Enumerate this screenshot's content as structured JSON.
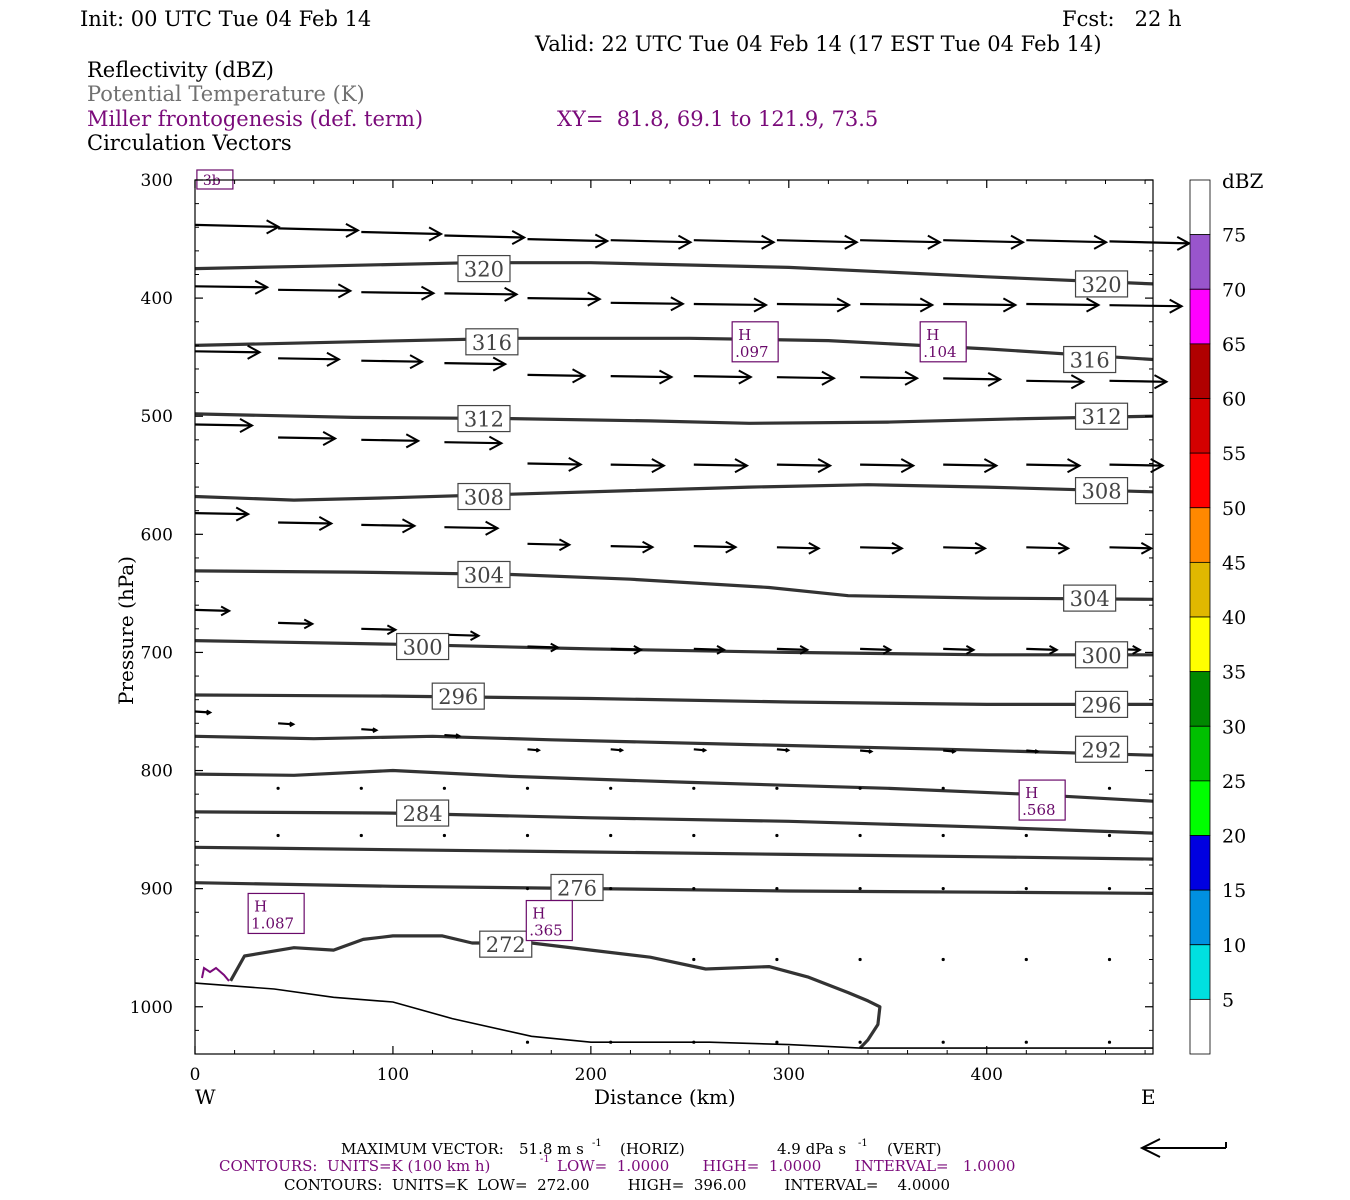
{
  "header": {
    "init": "Init: 00 UTC Tue 04 Feb 14",
    "fcst": "Fcst:   22 h",
    "valid": "Valid: 22 UTC Tue 04 Feb 14 (17 EST Tue 04 Feb 14)",
    "field1": "Reflectivity (dBZ)",
    "field2": "Potential Temperature (K)",
    "field3": "Miller frontogenesis (def. term)",
    "xy": "XY=  81.8, 69.1 to 121.9, 73.5",
    "field4": "Circulation Vectors"
  },
  "colors": {
    "field2": "#707070",
    "field3": "#7a0a7a",
    "contour": "#333333",
    "front_label": "#6a0a6a"
  },
  "chart_data": {
    "type": "cross-section",
    "xlabel": "Distance (km)",
    "ylabel": "Pressure (hPa)",
    "xlim": [
      0,
      484
    ],
    "ylim": [
      1040,
      300
    ],
    "x_ticks": [
      0,
      100,
      200,
      300,
      400
    ],
    "y_ticks": [
      300,
      400,
      500,
      600,
      700,
      800,
      900,
      1000
    ],
    "x_end_labels": {
      "left": "W",
      "right": "E"
    },
    "theta_contours": [
      {
        "label": "320",
        "points": [
          [
            0,
            375
          ],
          [
            60,
            373
          ],
          [
            140,
            370
          ],
          [
            200,
            370
          ],
          [
            300,
            374
          ],
          [
            400,
            382
          ],
          [
            484,
            388
          ]
        ]
      },
      {
        "label": "316",
        "points": [
          [
            0,
            440
          ],
          [
            80,
            437
          ],
          [
            160,
            434
          ],
          [
            250,
            434
          ],
          [
            320,
            436
          ],
          [
            400,
            443
          ],
          [
            484,
            452
          ]
        ]
      },
      {
        "label": "312",
        "points": [
          [
            0,
            498
          ],
          [
            80,
            501
          ],
          [
            160,
            502
          ],
          [
            230,
            504
          ],
          [
            280,
            506
          ],
          [
            350,
            505
          ],
          [
            420,
            502
          ],
          [
            484,
            500
          ]
        ]
      },
      {
        "label": "308",
        "points": [
          [
            0,
            568
          ],
          [
            50,
            571
          ],
          [
            100,
            569
          ],
          [
            160,
            566
          ],
          [
            220,
            563
          ],
          [
            280,
            560
          ],
          [
            340,
            558
          ],
          [
            400,
            560
          ],
          [
            484,
            564
          ]
        ]
      },
      {
        "label": "304",
        "points": [
          [
            0,
            631
          ],
          [
            80,
            632
          ],
          [
            160,
            634
          ],
          [
            220,
            638
          ],
          [
            290,
            645
          ],
          [
            330,
            652
          ],
          [
            400,
            654
          ],
          [
            484,
            655
          ]
        ]
      },
      {
        "label": "300",
        "points": [
          [
            0,
            690
          ],
          [
            100,
            693
          ],
          [
            200,
            697
          ],
          [
            300,
            700
          ],
          [
            400,
            702
          ],
          [
            484,
            702
          ]
        ]
      },
      {
        "label": "296",
        "points": [
          [
            0,
            736
          ],
          [
            100,
            737
          ],
          [
            200,
            739
          ],
          [
            300,
            742
          ],
          [
            400,
            744
          ],
          [
            484,
            744
          ]
        ]
      },
      {
        "label": "292",
        "points": [
          [
            0,
            771
          ],
          [
            60,
            773
          ],
          [
            120,
            771
          ],
          [
            180,
            774
          ],
          [
            280,
            778
          ],
          [
            380,
            782
          ],
          [
            484,
            787
          ]
        ]
      },
      {
        "label": "",
        "points": [
          [
            0,
            803
          ],
          [
            50,
            804
          ],
          [
            100,
            800
          ],
          [
            160,
            805
          ],
          [
            250,
            810
          ],
          [
            350,
            815
          ],
          [
            420,
            820
          ],
          [
            484,
            826
          ]
        ]
      },
      {
        "label": "284",
        "points": [
          [
            0,
            835
          ],
          [
            100,
            836
          ],
          [
            200,
            840
          ],
          [
            300,
            843
          ],
          [
            400,
            848
          ],
          [
            484,
            853
          ]
        ]
      },
      {
        "label": "",
        "points": [
          [
            0,
            865
          ],
          [
            100,
            867
          ],
          [
            200,
            869
          ],
          [
            300,
            871
          ],
          [
            400,
            873
          ],
          [
            484,
            875
          ]
        ]
      },
      {
        "label": "276",
        "points": [
          [
            0,
            895
          ],
          [
            100,
            898
          ],
          [
            200,
            900
          ],
          [
            300,
            902
          ],
          [
            400,
            903
          ],
          [
            484,
            904
          ]
        ]
      }
    ],
    "contour_272": {
      "label": "272",
      "points": [
        [
          18,
          978
        ],
        [
          25,
          957
        ],
        [
          50,
          950
        ],
        [
          70,
          952
        ],
        [
          85,
          943
        ],
        [
          100,
          940
        ],
        [
          125,
          940
        ],
        [
          140,
          946
        ],
        [
          170,
          946
        ],
        [
          200,
          952
        ],
        [
          230,
          958
        ],
        [
          258,
          968
        ],
        [
          290,
          966
        ],
        [
          310,
          975
        ],
        [
          330,
          988
        ],
        [
          340,
          995
        ],
        [
          346,
          1000
        ],
        [
          345,
          1015
        ],
        [
          340,
          1028
        ],
        [
          336,
          1035
        ]
      ],
      "bottom": [
        [
          0,
          980
        ],
        [
          40,
          985
        ],
        [
          70,
          992
        ],
        [
          100,
          996
        ],
        [
          130,
          1010
        ],
        [
          170,
          1025
        ],
        [
          200,
          1030
        ],
        [
          260,
          1030
        ],
        [
          300,
          1032
        ],
        [
          336,
          1035
        ],
        [
          484,
          1035
        ]
      ]
    },
    "contour_labels": [
      {
        "text": "320",
        "x": 146,
        "p": 375
      },
      {
        "text": "320",
        "x": 458,
        "p": 388
      },
      {
        "text": "316",
        "x": 150,
        "p": 437
      },
      {
        "text": "316",
        "x": 452,
        "p": 452
      },
      {
        "text": "312",
        "x": 146,
        "p": 502
      },
      {
        "text": "312",
        "x": 458,
        "p": 500
      },
      {
        "text": "308",
        "x": 146,
        "p": 568
      },
      {
        "text": "308",
        "x": 458,
        "p": 563
      },
      {
        "text": "304",
        "x": 146,
        "p": 634
      },
      {
        "text": "304",
        "x": 452,
        "p": 654
      },
      {
        "text": "300",
        "x": 115,
        "p": 695
      },
      {
        "text": "300",
        "x": 458,
        "p": 702
      },
      {
        "text": "296",
        "x": 133,
        "p": 737
      },
      {
        "text": "296",
        "x": 458,
        "p": 744
      },
      {
        "text": "292",
        "x": 458,
        "p": 782
      },
      {
        "text": "284",
        "x": 115,
        "p": 836
      },
      {
        "text": "276",
        "x": 193,
        "p": 899
      },
      {
        "text": "272",
        "x": 157,
        "p": 947
      }
    ],
    "frontogenesis_labels": [
      {
        "kind": "H",
        "value": ".097",
        "x": 283,
        "p": 437
      },
      {
        "kind": "H",
        "value": ".104",
        "x": 378,
        "p": 437
      },
      {
        "kind": "H",
        "value": ".568",
        "x": 428,
        "p": 825
      },
      {
        "kind": "H",
        "value": "1.087",
        "x": 41,
        "p": 921
      },
      {
        "kind": "H",
        "value": ".365",
        "x": 179,
        "p": 927
      }
    ],
    "partial_label": {
      "text": "3b",
      "x": 5,
      "p": 300
    },
    "vector_rows": [
      {
        "p": 338,
        "row_pressures": [
          338,
          341,
          344,
          347,
          350,
          351,
          351,
          351,
          351,
          351,
          351,
          352,
          352,
          352
        ],
        "lengths": [
          44,
          42,
          42,
          42,
          42,
          42,
          42,
          42,
          42,
          42,
          42,
          42,
          42,
          42
        ]
      },
      {
        "p": 390,
        "row_pressures": [
          390,
          393,
          395,
          396,
          400,
          404,
          405,
          405,
          405,
          405,
          405,
          406,
          406,
          406
        ],
        "lengths": [
          38,
          38,
          38,
          38,
          38,
          38,
          38,
          38,
          38,
          38,
          38,
          38,
          38,
          38
        ]
      },
      {
        "p": 445,
        "row_pressures": [
          445,
          451,
          453,
          455,
          465,
          466,
          466,
          467,
          467,
          468,
          470,
          470,
          470,
          470
        ],
        "lengths": [
          34,
          32,
          32,
          32,
          30,
          32,
          30,
          30,
          30,
          30,
          30,
          30,
          30,
          30
        ]
      },
      {
        "p": 507,
        "row_pressures": [
          507,
          518,
          520,
          522,
          540,
          541,
          541,
          541,
          541,
          541,
          541,
          541,
          541,
          541
        ],
        "lengths": [
          30,
          30,
          30,
          30,
          28,
          28,
          28,
          28,
          28,
          28,
          28,
          28,
          28,
          28
        ]
      },
      {
        "p": 582,
        "row_pressures": [
          582,
          590,
          592,
          594,
          608,
          610,
          610,
          611,
          611,
          611,
          611,
          611,
          611,
          611
        ],
        "lengths": [
          28,
          28,
          28,
          28,
          22,
          22,
          22,
          22,
          22,
          22,
          22,
          22,
          22,
          22
        ]
      },
      {
        "p": 664,
        "row_pressures": [
          664,
          675,
          680,
          685,
          695,
          697,
          697,
          697,
          697,
          697,
          697,
          697,
          697,
          697
        ],
        "lengths": [
          18,
          18,
          18,
          18,
          16,
          16,
          16,
          16,
          16,
          16,
          16,
          16,
          16,
          16
        ]
      },
      {
        "p": 750,
        "row_pressures": [
          750,
          760,
          765,
          770,
          782,
          782,
          782,
          782,
          783,
          783,
          783,
          783,
          783,
          783
        ],
        "lengths": [
          8,
          8,
          8,
          8,
          6,
          6,
          6,
          6,
          6,
          6,
          6,
          6,
          6,
          6
        ]
      }
    ],
    "vector_x": [
      0,
      42,
      84,
      126,
      168,
      210,
      252,
      294,
      336,
      378,
      420,
      462,
      484,
      484
    ],
    "dot_rows": [
      {
        "p": 815,
        "x": [
          42,
          84,
          126,
          168,
          210,
          252,
          294,
          336,
          378,
          420,
          462
        ]
      },
      {
        "p": 855,
        "x": [
          42,
          84,
          126,
          168,
          210,
          252,
          294,
          336,
          378,
          420,
          462
        ]
      },
      {
        "p": 900,
        "x": [
          168,
          210,
          252,
          294,
          336,
          378,
          420,
          462
        ]
      },
      {
        "p": 960,
        "x": [
          252,
          294,
          336,
          378,
          420,
          462
        ]
      },
      {
        "p": 1030,
        "x": [
          168,
          210,
          252,
          294,
          336,
          378,
          420,
          462
        ]
      }
    ],
    "colorbar": {
      "title": "dBZ",
      "levels": [
        "5",
        "10",
        "15",
        "20",
        "25",
        "30",
        "35",
        "40",
        "45",
        "50",
        "55",
        "60",
        "65",
        "70",
        "75"
      ],
      "colors": [
        "#ffffff",
        "#00e0e0",
        "#0090e0",
        "#0000e0",
        "#00ff00",
        "#00c000",
        "#008800",
        "#ffff00",
        "#e0b800",
        "#ff8800",
        "#ff0000",
        "#d40000",
        "#b00000",
        "#ff00ff",
        "#9955cc",
        "#ffffff"
      ]
    }
  },
  "footer": {
    "max_vector_label": "MAXIMUM VECTOR:",
    "max_vector_horiz": "51.8 m s",
    "horiz_tag": "(HORIZ)",
    "max_vector_vert": "4.9 dPa s",
    "vert_tag": "(VERT)",
    "exp": "-1",
    "contours1_a": "CONTOURS:  UNITS=K (100 km h)",
    "contours1_b": "LOW=  1.0000       HIGH=  1.0000       INTERVAL=   1.0000",
    "contours2": "CONTOURS:  UNITS=K  LOW=  272.00        HIGH=  396.00        INTERVAL=    4.0000"
  }
}
